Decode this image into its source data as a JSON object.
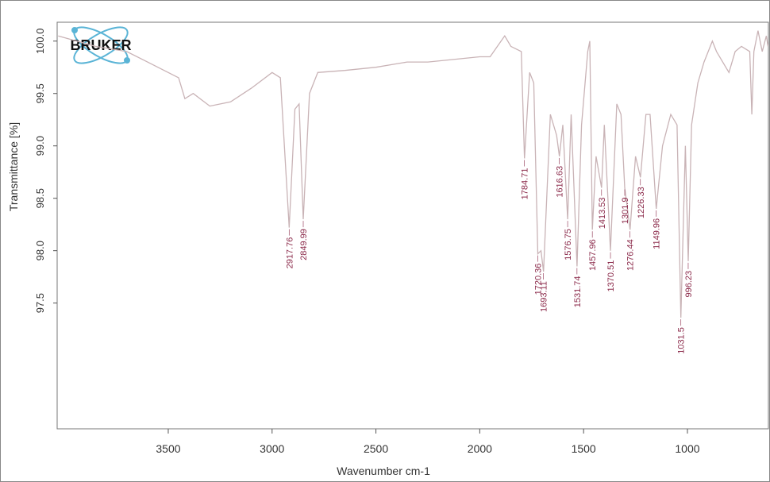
{
  "chart_data": {
    "type": "line",
    "logo": "BRUKER",
    "x_label": "Wavenumber cm-1",
    "y_label": "Transmittance [%]",
    "xlim": [
      4035,
      610
    ],
    "ylim": [
      96.3,
      100.18
    ],
    "xticks": [
      3500,
      3000,
      2500,
      2000,
      1500,
      1000
    ],
    "yticks": [
      {
        "value": 100,
        "label": "100.0"
      },
      99.5,
      {
        "value": 99,
        "label": "99.0"
      },
      98.5,
      {
        "value": 98,
        "label": "98.0"
      },
      97.5
    ],
    "color": "#c9b3b6",
    "label_color": "#8b2a4a",
    "x": [
      4030,
      3850,
      3700,
      3600,
      3450,
      3420,
      3380,
      3300,
      3200,
      3100,
      3000,
      2960,
      2917.76,
      2890,
      2870,
      2849.99,
      2820,
      2780,
      2650,
      2500,
      2350,
      2250,
      2000,
      1950,
      1880,
      1850,
      1800,
      1784.71,
      1760,
      1740,
      1720.36,
      1705,
      1693.11,
      1660,
      1630,
      1616.63,
      1600,
      1576.75,
      1560,
      1531.74,
      1510,
      1480,
      1470,
      1457.96,
      1440,
      1413.53,
      1400,
      1370.51,
      1340,
      1320,
      1301.9,
      1276.44,
      1250,
      1226.33,
      1200,
      1180,
      1149.96,
      1120,
      1080,
      1050,
      1031.5,
      1010,
      996.23,
      980,
      950,
      920,
      880,
      860,
      830,
      800,
      770,
      740,
      700,
      690,
      680,
      660,
      640,
      620,
      612
    ],
    "values": [
      100.05,
      99.95,
      99.9,
      99.8,
      99.65,
      99.45,
      99.5,
      99.38,
      99.42,
      99.55,
      99.7,
      99.65,
      98.22,
      99.35,
      99.4,
      98.3,
      99.5,
      99.7,
      99.72,
      99.75,
      99.8,
      99.8,
      99.85,
      99.85,
      100.05,
      99.95,
      99.9,
      98.88,
      99.7,
      99.6,
      97.97,
      98.0,
      97.8,
      99.3,
      99.1,
      98.9,
      99.2,
      98.3,
      99.3,
      97.85,
      99.2,
      99.9,
      100.0,
      98.2,
      98.9,
      98.6,
      99.2,
      98.0,
      99.4,
      99.3,
      98.6,
      98.2,
      98.9,
      98.7,
      99.3,
      99.3,
      98.4,
      99.0,
      99.3,
      99.2,
      97.36,
      99.0,
      97.9,
      99.2,
      99.6,
      99.8,
      100.0,
      99.9,
      99.8,
      99.7,
      99.9,
      99.95,
      99.9,
      99.3,
      99.9,
      100.1,
      99.9,
      100.05,
      99.95
    ],
    "peak_labels": [
      2917.76,
      2849.99,
      1784.71,
      1720.36,
      1693.11,
      1616.63,
      1576.75,
      1531.74,
      1457.96,
      1413.53,
      1370.51,
      1301.9,
      1276.44,
      1226.33,
      1149.96,
      1031.5,
      996.23
    ]
  }
}
